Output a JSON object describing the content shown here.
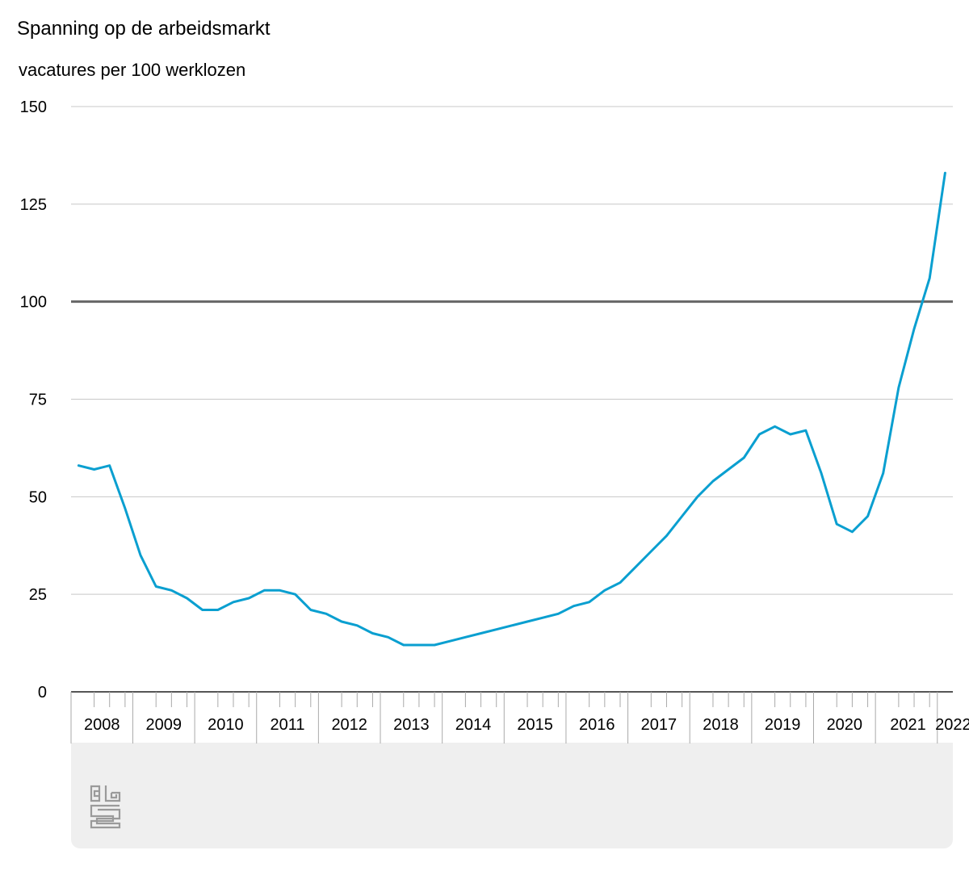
{
  "chart_data": {
    "type": "line",
    "title": "Spanning op de arbeidsmarkt",
    "ylabel": "vacatures per 100 werklozen",
    "xlabel": "",
    "ylim": [
      0,
      150
    ],
    "yticks": [
      0,
      25,
      50,
      75,
      100,
      125,
      150
    ],
    "grid": true,
    "reference_line": 100,
    "legend": "none",
    "line_color": "#0a9fd0",
    "years": [
      "2008",
      "2009",
      "2010",
      "2011",
      "2012",
      "2013",
      "2014",
      "2015",
      "2016",
      "2017",
      "2018",
      "2019",
      "2020",
      "2021",
      "2022"
    ],
    "x": [
      "2008-Q1",
      "2008-Q2",
      "2008-Q3",
      "2008-Q4",
      "2009-Q1",
      "2009-Q2",
      "2009-Q3",
      "2009-Q4",
      "2010-Q1",
      "2010-Q2",
      "2010-Q3",
      "2010-Q4",
      "2011-Q1",
      "2011-Q2",
      "2011-Q3",
      "2011-Q4",
      "2012-Q1",
      "2012-Q2",
      "2012-Q3",
      "2012-Q4",
      "2013-Q1",
      "2013-Q2",
      "2013-Q3",
      "2013-Q4",
      "2014-Q1",
      "2014-Q2",
      "2014-Q3",
      "2014-Q4",
      "2015-Q1",
      "2015-Q2",
      "2015-Q3",
      "2015-Q4",
      "2016-Q1",
      "2016-Q2",
      "2016-Q3",
      "2016-Q4",
      "2017-Q1",
      "2017-Q2",
      "2017-Q3",
      "2017-Q4",
      "2018-Q1",
      "2018-Q2",
      "2018-Q3",
      "2018-Q4",
      "2019-Q1",
      "2019-Q2",
      "2019-Q3",
      "2019-Q4",
      "2020-Q1",
      "2020-Q2",
      "2020-Q3",
      "2020-Q4",
      "2021-Q1",
      "2021-Q2",
      "2021-Q3",
      "2021-Q4",
      "2022-Q1"
    ],
    "series": [
      {
        "values": [
          58,
          57,
          58,
          47,
          35,
          27,
          26,
          24,
          21,
          21,
          23,
          24,
          26,
          26,
          25,
          21,
          20,
          18,
          17,
          15,
          14,
          12,
          12,
          12,
          13,
          14,
          15,
          16,
          17,
          18,
          19,
          20,
          22,
          23,
          26,
          28,
          32,
          36,
          40,
          45,
          50,
          54,
          57,
          60,
          66,
          68,
          66,
          67,
          56,
          43,
          41,
          45,
          56,
          78,
          93,
          106,
          133
        ]
      }
    ]
  }
}
